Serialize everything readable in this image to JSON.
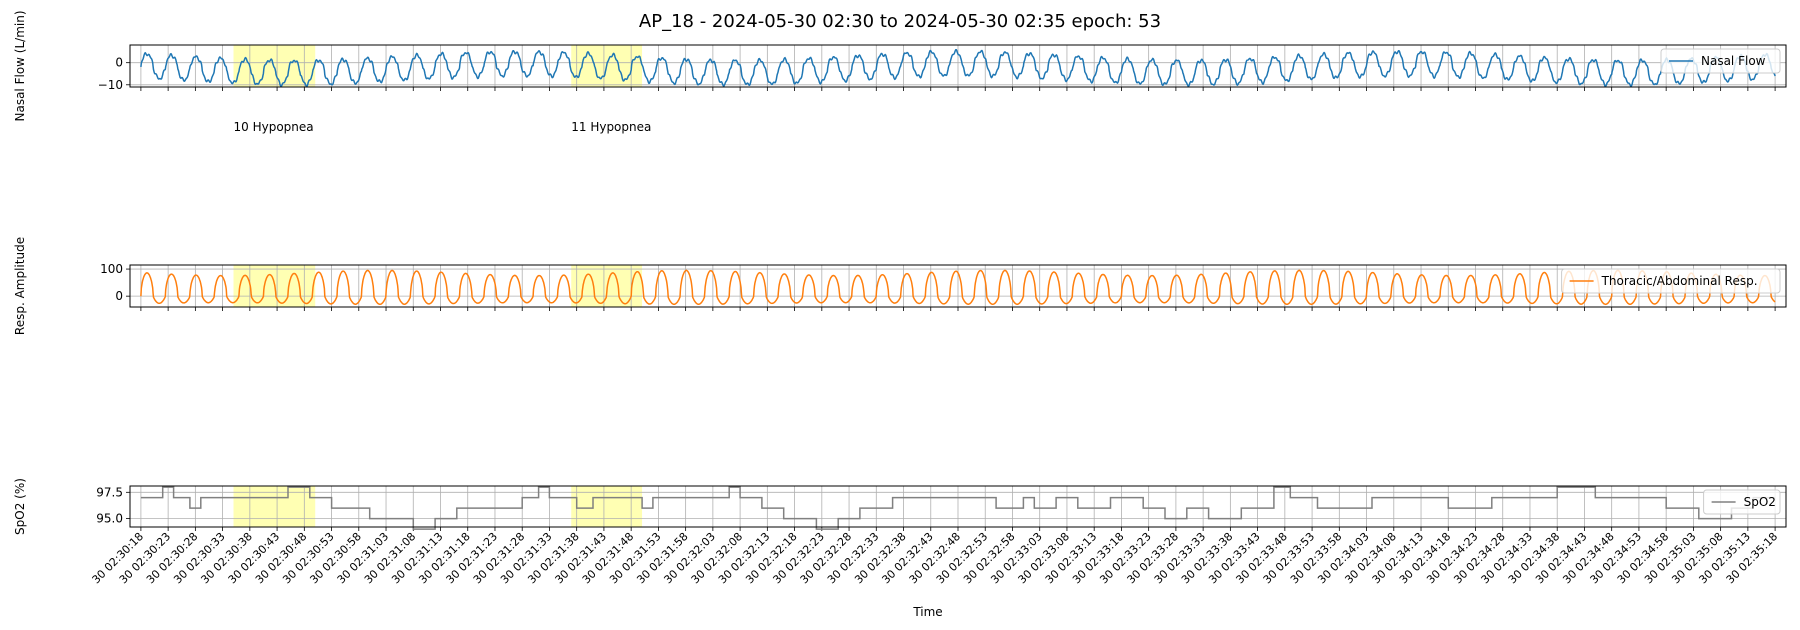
{
  "chart_data": {
    "type": "line",
    "title": "AP_18 - 2024-05-30 02:30 to 2024-05-30 02:35 epoch: 53",
    "xlabel": "Time",
    "xlim_seconds": [
      "02:30:16",
      "02:35:20"
    ],
    "x_tick_labels": [
      "30 02:30:18",
      "30 02:30:23",
      "30 02:30:28",
      "30 02:30:33",
      "30 02:30:38",
      "30 02:30:43",
      "30 02:30:48",
      "30 02:30:53",
      "30 02:30:58",
      "30 02:31:03",
      "30 02:31:08",
      "30 02:31:13",
      "30 02:31:18",
      "30 02:31:23",
      "30 02:31:28",
      "30 02:31:33",
      "30 02:31:38",
      "30 02:31:43",
      "30 02:31:48",
      "30 02:31:53",
      "30 02:31:58",
      "30 02:32:03",
      "30 02:32:08",
      "30 02:32:13",
      "30 02:32:18",
      "30 02:32:23",
      "30 02:32:28",
      "30 02:32:33",
      "30 02:32:38",
      "30 02:32:43",
      "30 02:32:48",
      "30 02:32:53",
      "30 02:32:58",
      "30 02:33:03",
      "30 02:33:08",
      "30 02:33:13",
      "30 02:33:18",
      "30 02:33:23",
      "30 02:33:28",
      "30 02:33:33",
      "30 02:33:38",
      "30 02:33:43",
      "30 02:33:48",
      "30 02:33:53",
      "30 02:33:58",
      "30 02:34:03",
      "30 02:34:08",
      "30 02:34:13",
      "30 02:34:18",
      "30 02:34:23",
      "30 02:34:28",
      "30 02:34:33",
      "30 02:34:38",
      "30 02:34:43",
      "30 02:34:48",
      "30 02:34:53",
      "30 02:34:58",
      "30 02:35:03",
      "30 02:35:08",
      "30 02:35:13",
      "30 02:35:18"
    ],
    "grid": true,
    "events": [
      {
        "label": "10 Hypopnea",
        "start": "02:30:35",
        "end": "02:30:50"
      },
      {
        "label": "11 Hypopnea",
        "start": "02:31:37",
        "end": "02:31:50"
      }
    ],
    "event_color": "#ffff99",
    "panels": [
      {
        "ylabel": "Nasal Flow (L/min)",
        "ylim": [
          -11,
          8
        ],
        "yticks": [
          0,
          -10
        ],
        "ytick_labels": [
          "0",
          "−10"
        ],
        "legend": "Nasal Flow",
        "legend_position": "top-right",
        "color": "#1f77b4",
        "signal": {
          "start": "02:30:18",
          "end": "02:35:18",
          "breath_period_s": 4.5,
          "baseline": -3,
          "peak": 3,
          "trough": -8
        }
      },
      {
        "ylabel": "Resp. Amplitude",
        "ylim": [
          -40,
          115
        ],
        "yticks": [
          100,
          0
        ],
        "ytick_labels": [
          "100",
          "0"
        ],
        "legend": "Thoracic/Abdominal Resp.",
        "legend_position": "top-right",
        "color": "#ff7f0e",
        "signal": {
          "start": "02:30:18",
          "end": "02:35:18",
          "breath_period_s": 4.5,
          "peak": 95,
          "trough": -30
        }
      },
      {
        "ylabel": "SpO2 (%)",
        "ylim": [
          94.2,
          98.1
        ],
        "yticks": [
          97.5,
          95.0
        ],
        "ytick_labels": [
          "97.5",
          "95.0"
        ],
        "legend": "SpO2",
        "legend_position": "top-right",
        "color": "#808080",
        "series": [
          {
            "t": "02:30:18",
            "v": 97
          },
          {
            "t": "02:30:22",
            "v": 98
          },
          {
            "t": "02:30:24",
            "v": 97
          },
          {
            "t": "02:30:27",
            "v": 96
          },
          {
            "t": "02:30:29",
            "v": 97
          },
          {
            "t": "02:30:45",
            "v": 98
          },
          {
            "t": "02:30:49",
            "v": 97
          },
          {
            "t": "02:30:53",
            "v": 96
          },
          {
            "t": "02:31:00",
            "v": 95
          },
          {
            "t": "02:31:08",
            "v": 94
          },
          {
            "t": "02:31:12",
            "v": 95
          },
          {
            "t": "02:31:16",
            "v": 96
          },
          {
            "t": "02:31:28",
            "v": 97
          },
          {
            "t": "02:31:31",
            "v": 98
          },
          {
            "t": "02:31:33",
            "v": 97
          },
          {
            "t": "02:31:38",
            "v": 96
          },
          {
            "t": "02:31:41",
            "v": 97
          },
          {
            "t": "02:31:50",
            "v": 96
          },
          {
            "t": "02:31:52",
            "v": 97
          },
          {
            "t": "02:32:06",
            "v": 98
          },
          {
            "t": "02:32:08",
            "v": 97
          },
          {
            "t": "02:32:12",
            "v": 96
          },
          {
            "t": "02:32:16",
            "v": 95
          },
          {
            "t": "02:32:22",
            "v": 94
          },
          {
            "t": "02:32:26",
            "v": 95
          },
          {
            "t": "02:32:30",
            "v": 96
          },
          {
            "t": "02:32:36",
            "v": 97
          },
          {
            "t": "02:32:55",
            "v": 96
          },
          {
            "t": "02:33:00",
            "v": 97
          },
          {
            "t": "02:33:02",
            "v": 96
          },
          {
            "t": "02:33:06",
            "v": 97
          },
          {
            "t": "02:33:10",
            "v": 96
          },
          {
            "t": "02:33:16",
            "v": 97
          },
          {
            "t": "02:33:22",
            "v": 96
          },
          {
            "t": "02:33:26",
            "v": 95
          },
          {
            "t": "02:33:30",
            "v": 96
          },
          {
            "t": "02:33:34",
            "v": 95
          },
          {
            "t": "02:33:40",
            "v": 96
          },
          {
            "t": "02:33:46",
            "v": 98
          },
          {
            "t": "02:33:49",
            "v": 97
          },
          {
            "t": "02:33:54",
            "v": 96
          },
          {
            "t": "02:34:04",
            "v": 97
          },
          {
            "t": "02:34:18",
            "v": 96
          },
          {
            "t": "02:34:26",
            "v": 97
          },
          {
            "t": "02:34:38",
            "v": 98
          },
          {
            "t": "02:34:45",
            "v": 97
          },
          {
            "t": "02:34:58",
            "v": 96
          },
          {
            "t": "02:35:04",
            "v": 95
          },
          {
            "t": "02:35:10",
            "v": 96
          },
          {
            "t": "02:35:14",
            "v": 97
          },
          {
            "t": "02:35:18",
            "v": 97
          }
        ]
      }
    ]
  }
}
